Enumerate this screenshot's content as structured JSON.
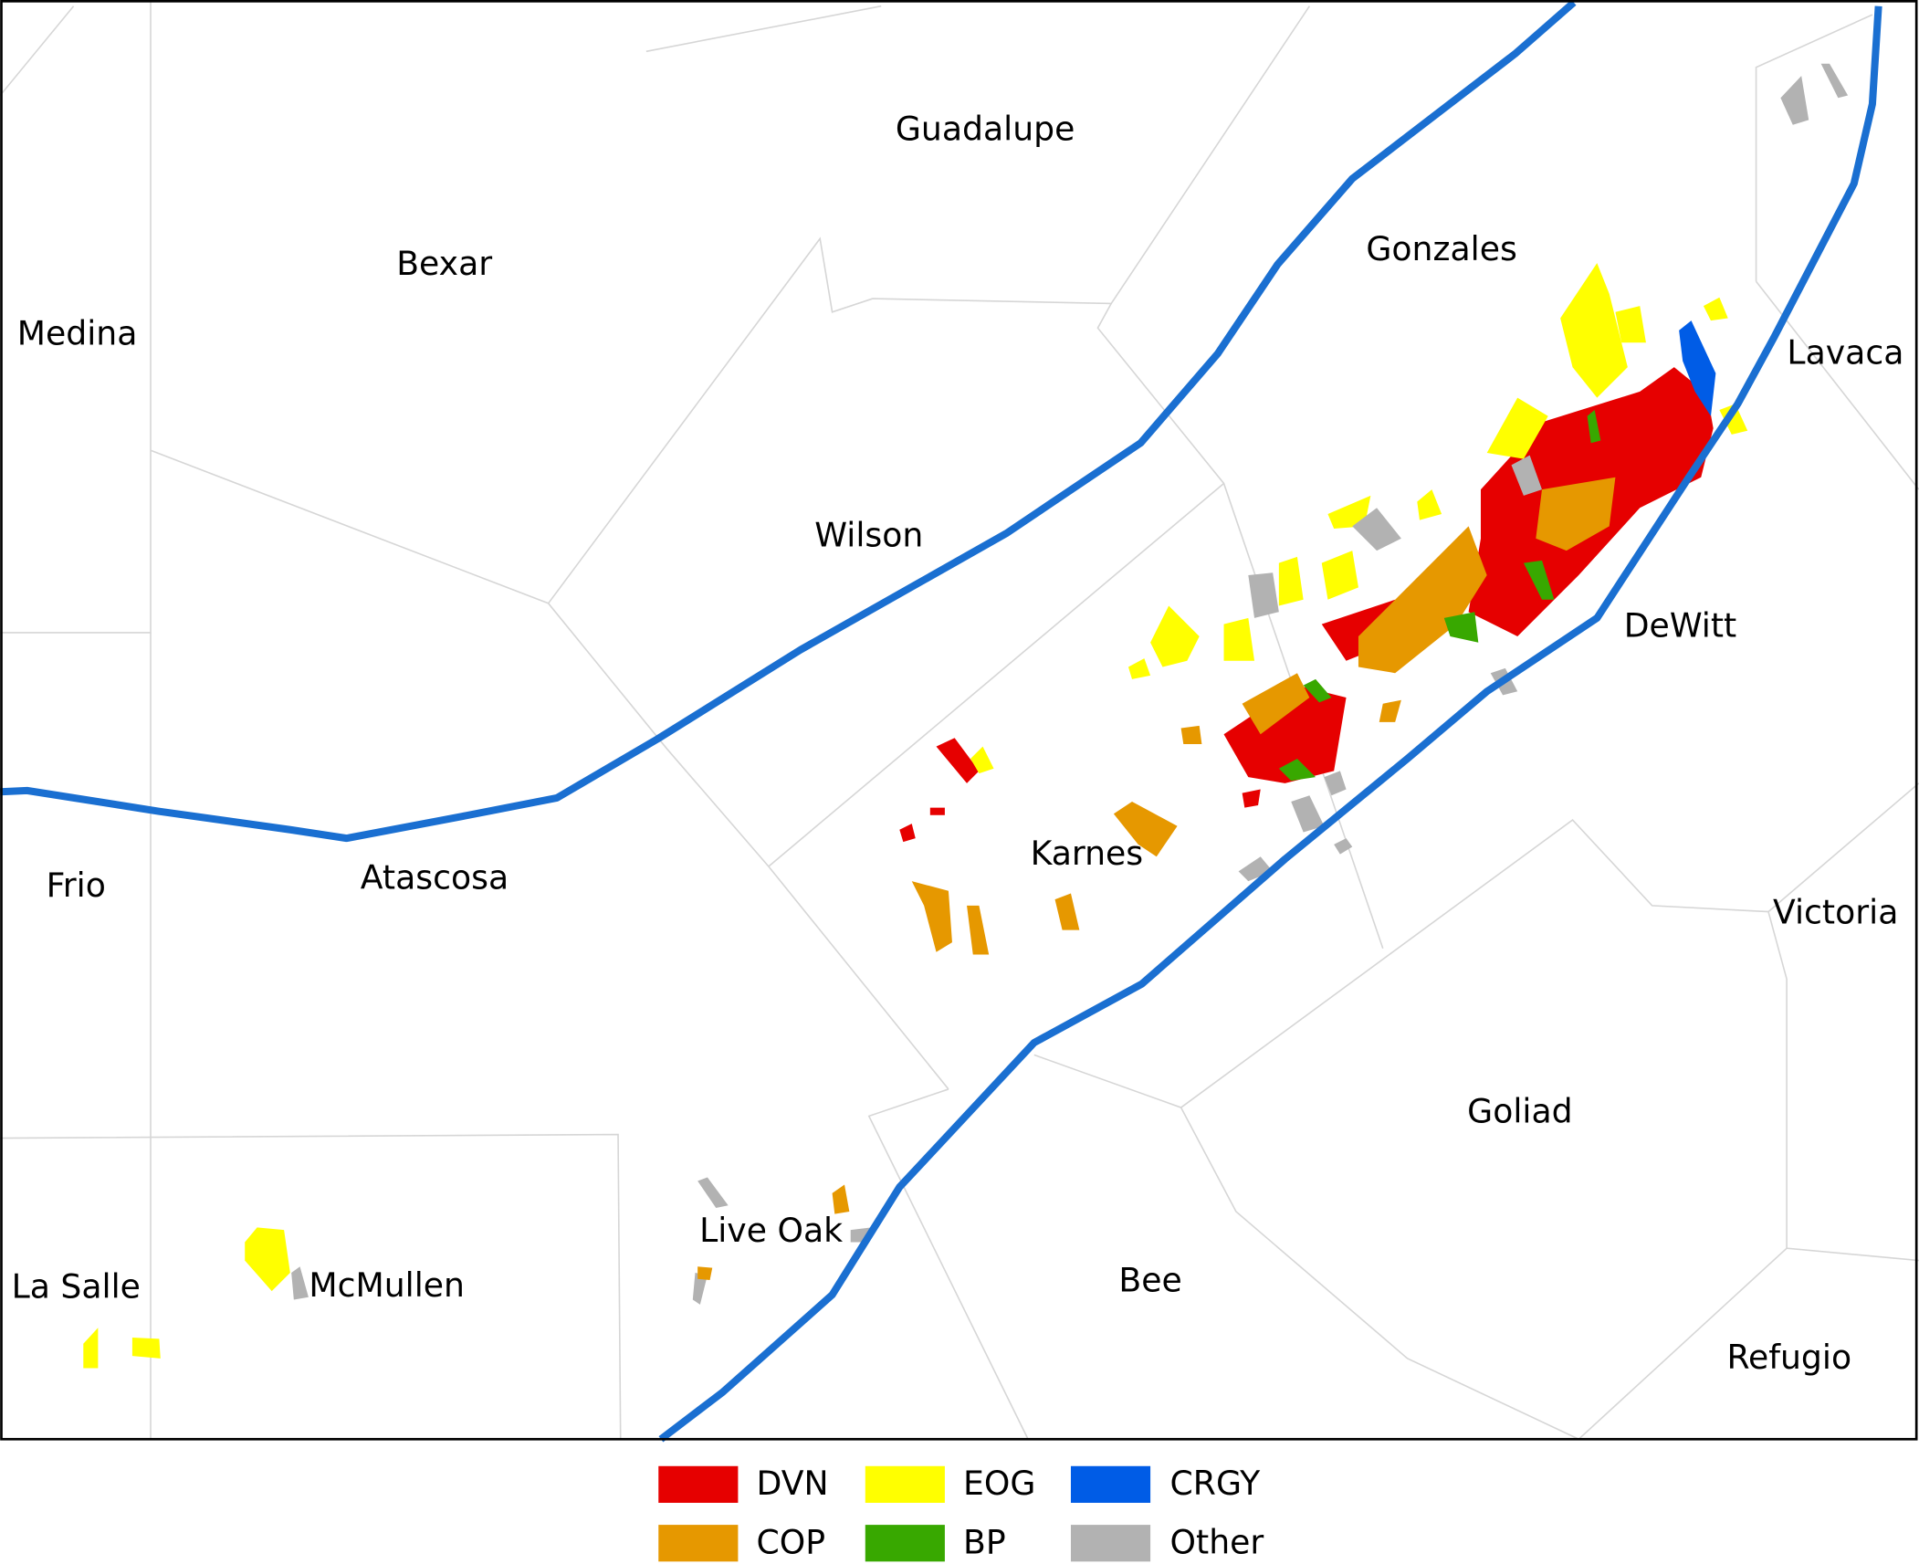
{
  "map": {
    "counties": [
      "Guadalupe",
      "Bexar",
      "Medina",
      "Gonzales",
      "Lavaca",
      "Wilson",
      "DeWitt",
      "Karnes",
      "Atascosa",
      "Frio",
      "Victoria",
      "Goliad",
      "Live Oak",
      "Bee",
      "La Salle",
      "McMullen",
      "Refugio"
    ],
    "legend": [
      {
        "label": "DVN",
        "color": "#e60000"
      },
      {
        "label": "EOG",
        "color": "#ffff00"
      },
      {
        "label": "CRGY",
        "color": "#005ce6"
      },
      {
        "label": "COP",
        "color": "#e69800"
      },
      {
        "label": "BP",
        "color": "#38a800"
      },
      {
        "label": "Other",
        "color": "#b2b2b2"
      }
    ]
  }
}
